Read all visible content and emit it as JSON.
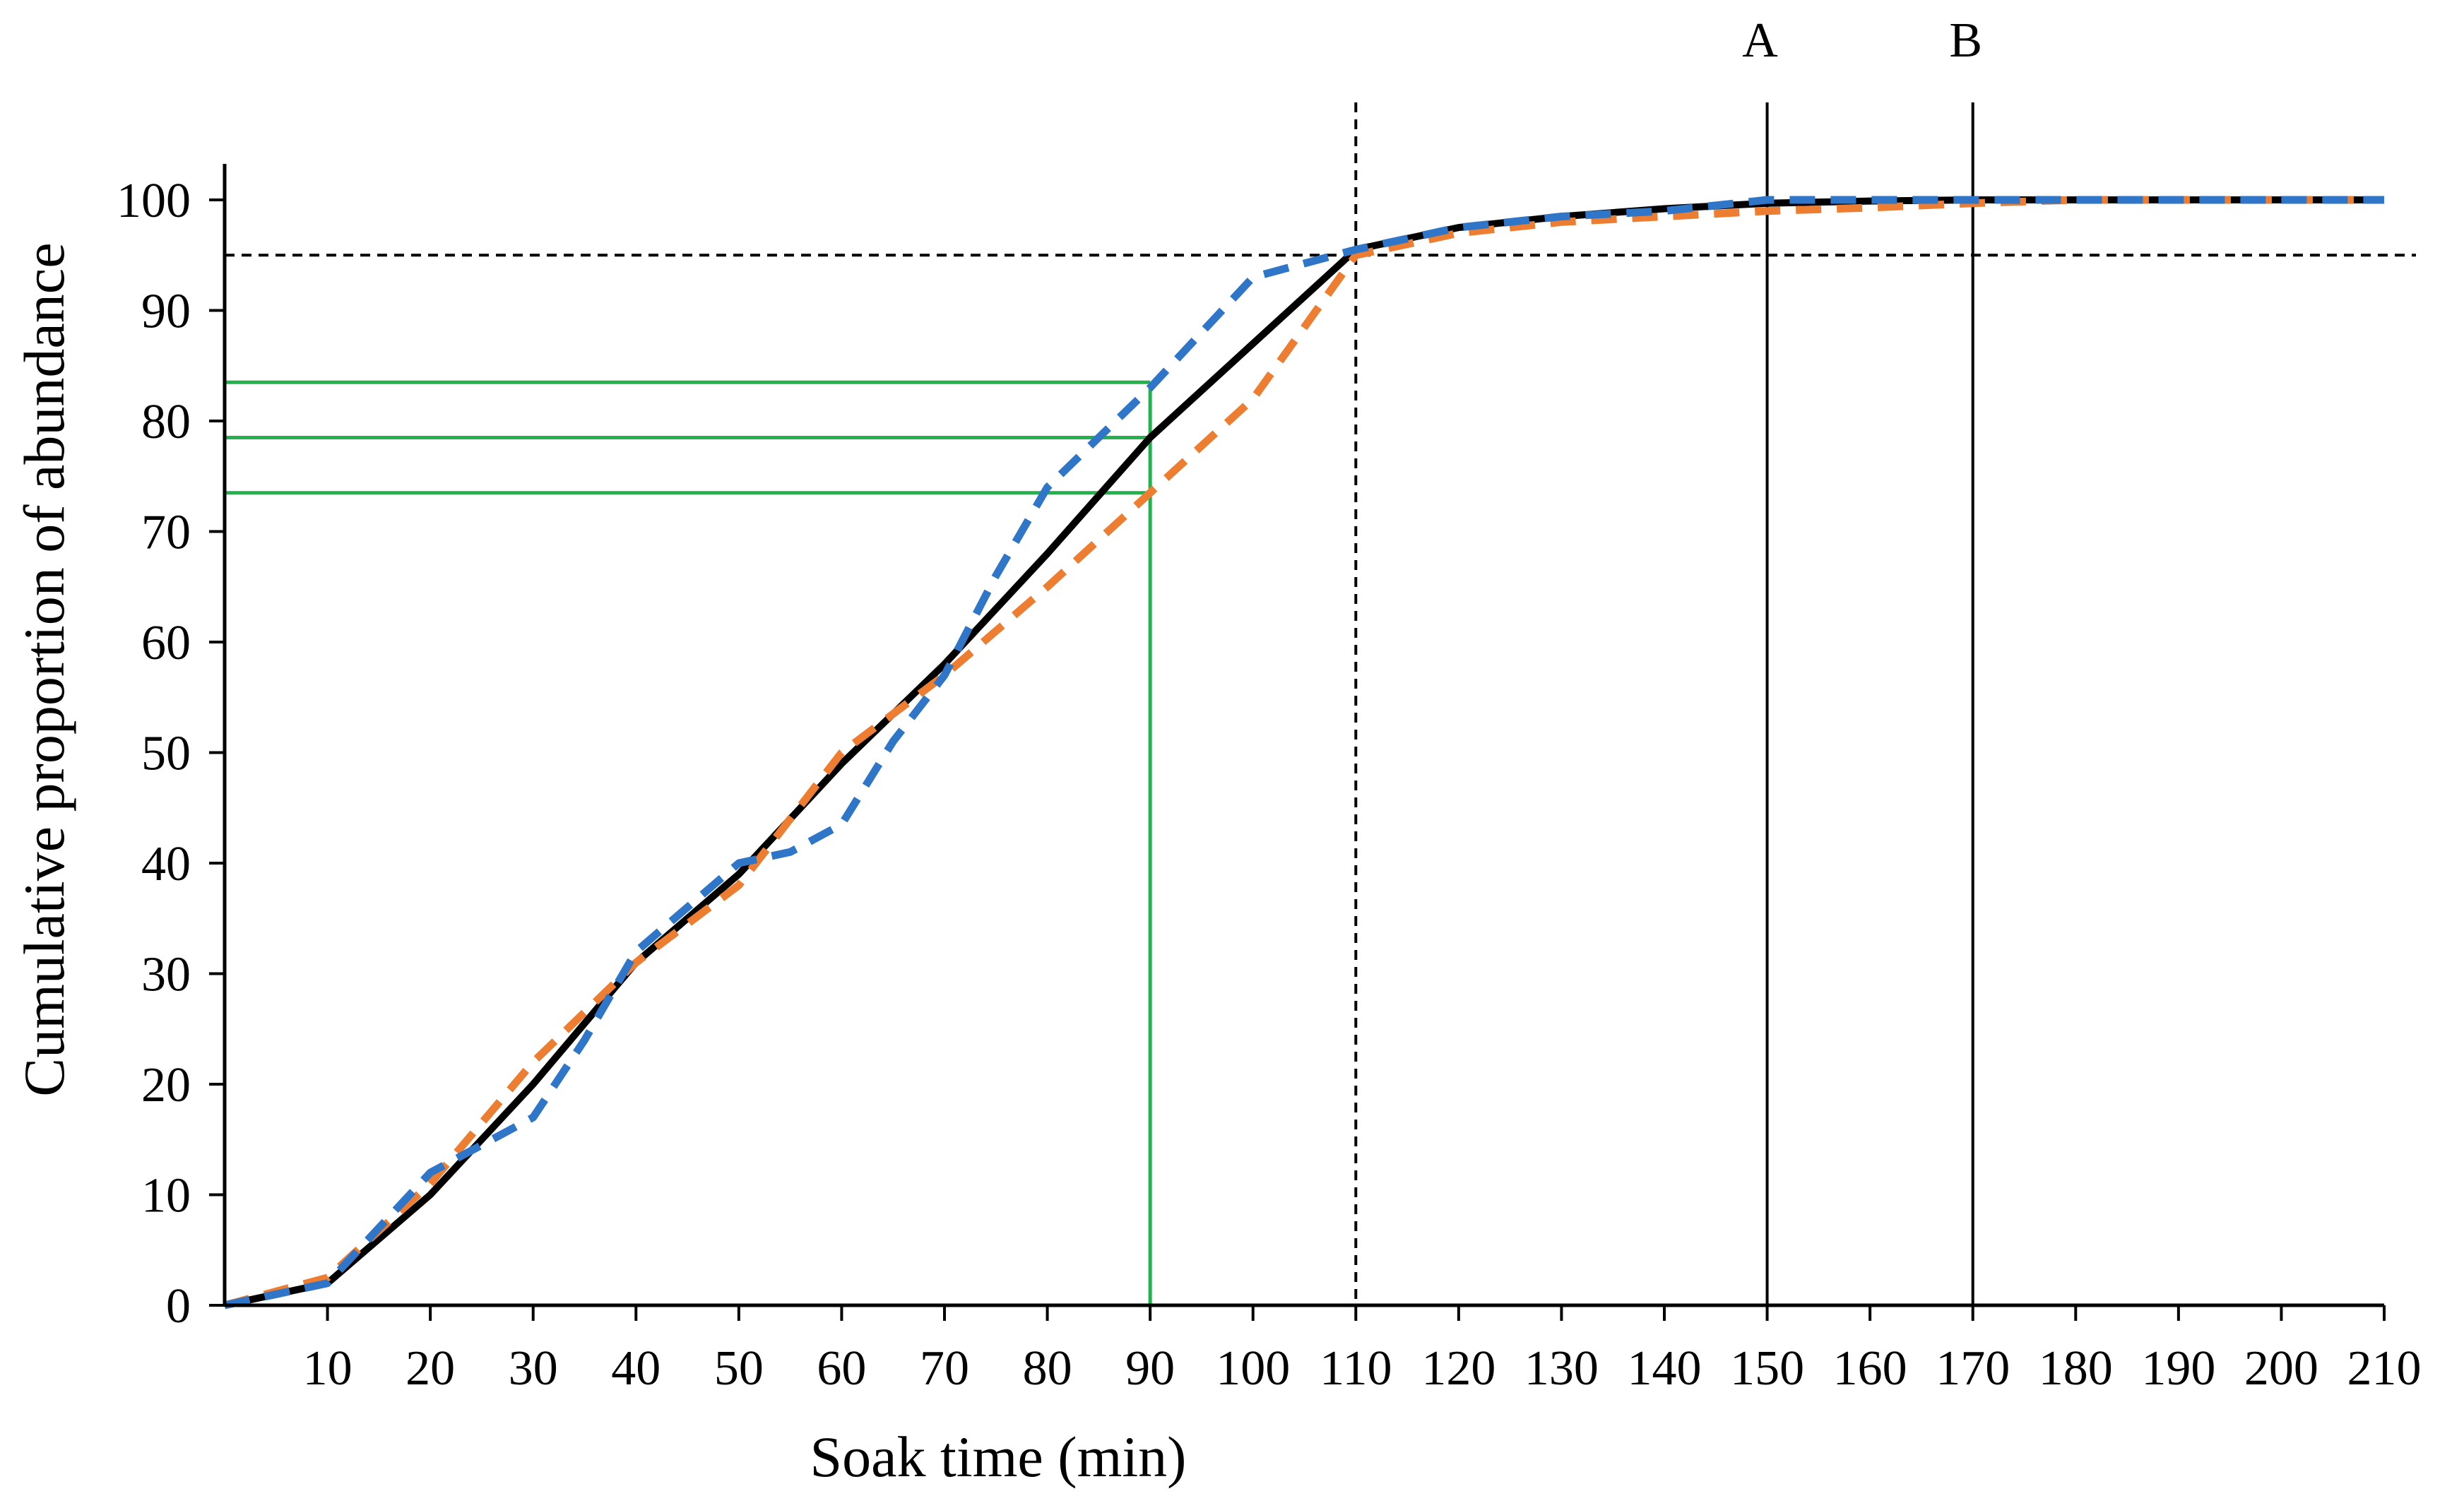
{
  "chart_data": {
    "type": "line",
    "xlabel": "Soak time (min)",
    "ylabel": "Cumulative proportion of abundance",
    "xlim": [
      0,
      210
    ],
    "ylim": [
      0,
      100
    ],
    "x_ticks": [
      10,
      20,
      30,
      40,
      50,
      60,
      70,
      80,
      90,
      100,
      110,
      120,
      130,
      140,
      150,
      160,
      170,
      180,
      190,
      200,
      210
    ],
    "y_ticks": [
      0,
      10,
      20,
      30,
      40,
      50,
      60,
      70,
      80,
      90,
      100
    ],
    "grid": false,
    "legend": "none",
    "series": [
      {
        "color": "#000000",
        "style": "solid",
        "x": [
          0,
          10,
          20,
          30,
          40,
          50,
          60,
          70,
          80,
          90,
          100,
          110,
          120,
          130,
          140,
          150,
          160,
          170,
          180,
          190,
          200,
          210
        ],
        "values": [
          0,
          2,
          10,
          20,
          31,
          39,
          49,
          58,
          68,
          78.5,
          87,
          95.5,
          97.5,
          98.5,
          99.2,
          99.7,
          99.9,
          100,
          100,
          100,
          100,
          100
        ]
      },
      {
        "color": "#ED7D31",
        "style": "dashed",
        "x": [
          0,
          10,
          20,
          30,
          40,
          50,
          60,
          70,
          80,
          90,
          100,
          110,
          120,
          130,
          140,
          150,
          160,
          170,
          180,
          190,
          200,
          210
        ],
        "values": [
          0,
          2.5,
          11,
          22,
          31,
          38,
          50,
          57,
          65,
          73.5,
          82,
          95,
          97,
          98,
          98.5,
          99,
          99.3,
          99.7,
          100,
          100,
          100,
          100
        ]
      },
      {
        "color": "#2F75C8",
        "style": "dashed",
        "x": [
          0,
          10,
          20,
          30,
          35,
          40,
          45,
          50,
          55,
          60,
          65,
          70,
          75,
          80,
          90,
          95,
          100,
          110,
          120,
          130,
          140,
          150,
          160,
          170,
          180,
          190,
          200,
          210
        ],
        "values": [
          0,
          2,
          12,
          17,
          24,
          32,
          36,
          40,
          41,
          43.5,
          51,
          57,
          66,
          74,
          83,
          88,
          93,
          95.5,
          97.5,
          98.5,
          99,
          100,
          100,
          100,
          100,
          100,
          100,
          100
        ]
      }
    ],
    "reference_lines": {
      "horizontal_dashed_y": 95,
      "vertical_dashed_x": 110,
      "vertical_solid": [
        {
          "x": 150,
          "label": "A"
        },
        {
          "x": 170,
          "label": "B"
        }
      ],
      "green_guides": {
        "color": "#22B14C",
        "x": 90,
        "y_levels": [
          83.5,
          78.5,
          73.5
        ]
      }
    }
  }
}
